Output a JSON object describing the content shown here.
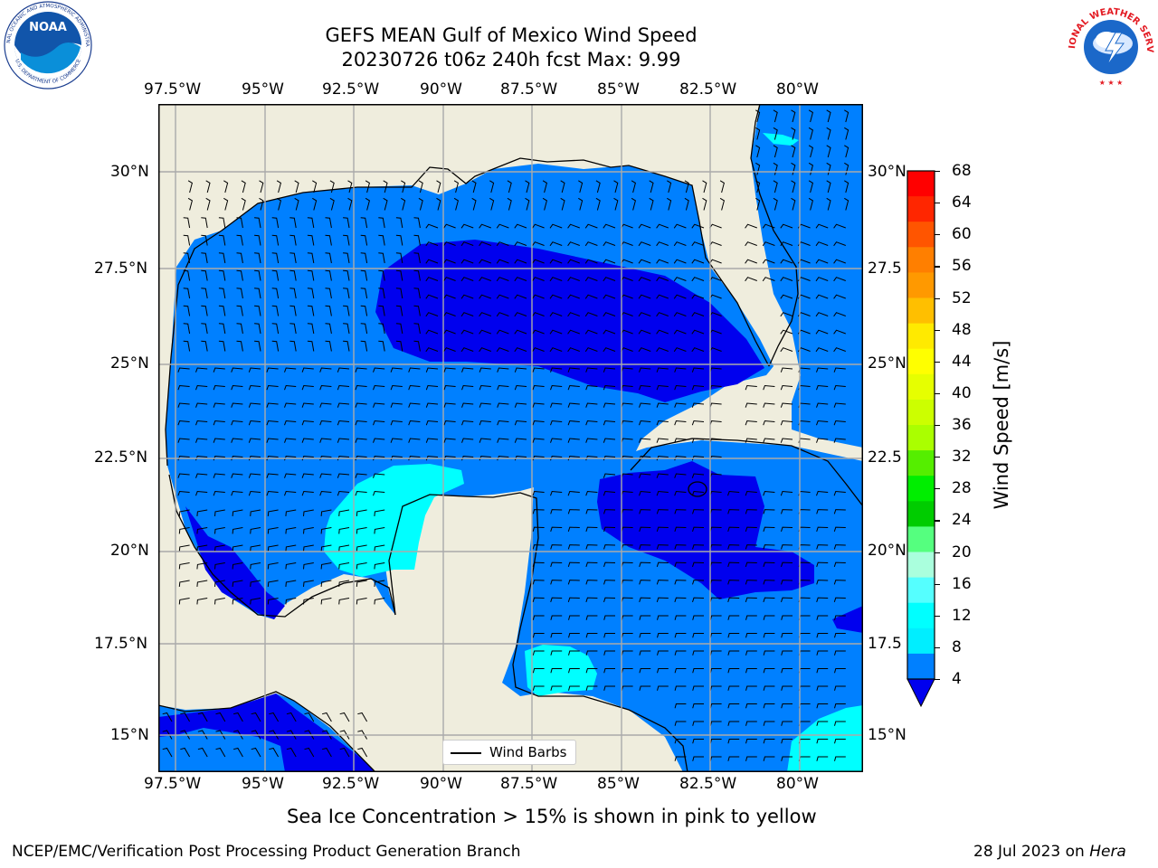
{
  "header": {
    "title_line1": "GEFS MEAN Gulf of Mexico Wind Speed",
    "title_line2": "20230726 t06z 240h fcst   Max: 9.99"
  },
  "logos": {
    "left": {
      "name": "NOAA",
      "ring_text": "NATIONAL OCEANIC AND ATMOSPHERIC ADMINISTRATION",
      "bottom_text": "U.S. DEPARTMENT OF COMMERCE"
    },
    "right": {
      "ring_text": "NATIONAL WEATHER SERVICE"
    }
  },
  "map": {
    "lon_labels": [
      "97.5°W",
      "95°W",
      "92.5°W",
      "90°W",
      "87.5°W",
      "85°W",
      "82.5°W",
      "80°W"
    ],
    "lat_labels": [
      "30°N",
      "27.5°N",
      "25°N",
      "22.5°N",
      "20°N",
      "17.5°N",
      "15°N"
    ],
    "lat_labels_right": [
      "30°N",
      "27.5",
      "25°N",
      "22.5",
      "20°N",
      "17.5",
      "15°N"
    ],
    "legend_label": "Wind Barbs",
    "colors": {
      "land": "#efeddd",
      "ocean": "#0080ff",
      "calm": "#0000ee",
      "teal": "#00ffff"
    }
  },
  "colorbar": {
    "label": "Wind Speed [m/s]",
    "ticks": [
      "68",
      "64",
      "60",
      "56",
      "52",
      "48",
      "44",
      "40",
      "36",
      "32",
      "28",
      "24",
      "20",
      "16",
      "12",
      "8",
      "4"
    ],
    "colors": [
      "#ff0000",
      "#ff2600",
      "#ff5500",
      "#ff7f00",
      "#ff9900",
      "#ffbf00",
      "#ffea00",
      "#ffff00",
      "#e6ff00",
      "#ccff00",
      "#aaff00",
      "#55ee00",
      "#00ee00",
      "#00cc00",
      "#55ff7f",
      "#aaffdd",
      "#55ffff",
      "#00ffff",
      "#00eeff",
      "#0080ff"
    ],
    "under_color": "#0000ee"
  },
  "notes": {
    "sea_ice": "Sea Ice Concentration > 15% is shown in pink to yellow",
    "footer_left": "NCEP/EMC/Verification Post Processing Product Generation Branch",
    "footer_right_prefix": "28 Jul 2023 on ",
    "footer_right_host": "Hera"
  }
}
